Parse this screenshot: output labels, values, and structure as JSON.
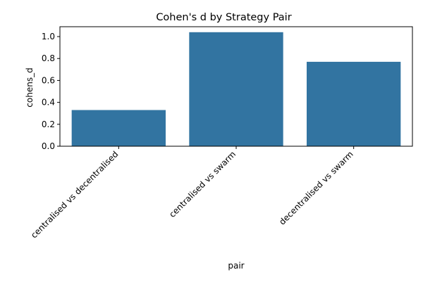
{
  "chart_data": {
    "type": "bar",
    "title": "Cohen's d by Strategy Pair",
    "xlabel": "pair",
    "ylabel": "cohens_d",
    "categories": [
      "centralised vs decentralised",
      "centralised vs swarm",
      "decentralised vs swarm"
    ],
    "values": [
      0.33,
      1.04,
      0.77
    ],
    "ylim": [
      0,
      1.09
    ],
    "yticks": [
      0.0,
      0.2,
      0.4,
      0.6,
      0.8,
      1.0
    ],
    "ytick_labels": [
      "0.0",
      "0.2",
      "0.4",
      "0.6",
      "0.8",
      "1.0"
    ],
    "grid": false,
    "legend": "none",
    "bar_color": "#3274a1",
    "xtick_rotation_deg": 45
  }
}
